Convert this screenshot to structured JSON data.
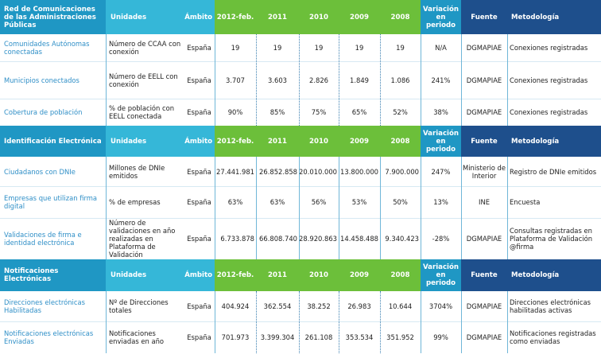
{
  "header_labels": {
    "unidades": "Unidades",
    "ambito": "Ámbito",
    "years": [
      "2012-feb.",
      "2011",
      "2010",
      "2009",
      "2008"
    ],
    "variacion": "Variación en periodo",
    "fuente": "Fuente",
    "metodologia": "Metodología"
  },
  "sections": [
    {
      "title": "Red de Comunicaciones de las Administraciones Públicas",
      "rows": [
        {
          "name": "Comunidades Autónomas conectadas",
          "unit": "Número de CCAA con conexión",
          "ambito": "España",
          "values": [
            "19",
            "19",
            "19",
            "19",
            "19"
          ],
          "variacion": "N/A",
          "fuente": "DGMAPIAE",
          "metodologia": "Conexiones registradas"
        },
        {
          "name": "Municipios conectados",
          "unit": "Número de EELL con conexión",
          "ambito": "España",
          "values": [
            "3.707",
            "3.603",
            "2.826",
            "1.849",
            "1.086"
          ],
          "variacion": "241%",
          "fuente": "DGMAPIAE",
          "metodologia": "Conexiones registradas"
        },
        {
          "name": "Cobertura de población",
          "unit": "% de población con EELL conectada",
          "ambito": "España",
          "values": [
            "90%",
            "85%",
            "75%",
            "65%",
            "52%"
          ],
          "variacion": "38%",
          "fuente": "DGMAPIAE",
          "metodologia": "Conexiones registradas"
        }
      ]
    },
    {
      "title": "Identificación Electrónica",
      "rows": [
        {
          "name": "Ciudadanos con DNIe",
          "unit": "Millones de DNIe emitidos",
          "ambito": "España",
          "values": [
            "27.441.981",
            "26.852.858",
            "20.010.000",
            "13.800.000",
            "7.900.000"
          ],
          "variacion": "247%",
          "fuente": "Ministerio de Interior",
          "metodologia": "Registro de DNIe emitidos"
        },
        {
          "name": "Empresas que utilizan firma digital",
          "unit": "% de empresas",
          "ambito": "España",
          "values": [
            "63%",
            "63%",
            "56%",
            "53%",
            "50%"
          ],
          "variacion": "13%",
          "fuente": "INE",
          "metodologia": "Encuesta"
        },
        {
          "name": "Validaciones de firma e identidad electrónica",
          "unit": "Número de validaciones en año realizadas en Plataforma de Validación",
          "ambito": "España",
          "values": [
            "6.733.878",
            "66.808.740",
            "28.920.863",
            "14.458.488",
            "9.340.423"
          ],
          "variacion": "-28%",
          "fuente": "DGMAPIAE",
          "metodologia": "Consultas registradas en Plataforma de Validación @firma"
        }
      ]
    },
    {
      "title": "Notificaciones Electrónicas",
      "rows": [
        {
          "name": "Direcciones electrónicas Habilitadas",
          "unit": "Nº de Direcciones totales",
          "ambito": "España",
          "values": [
            "404.924",
            "362.554",
            "38.252",
            "26.983",
            "10.644"
          ],
          "variacion": "3704%",
          "fuente": "DGMAPIAE",
          "metodologia": "Direcciones electrónicas habilitadas activas"
        },
        {
          "name": "Notificaciones electrónicas Enviadas",
          "unit": "Notificaciones enviadas en año",
          "ambito": "España",
          "values": [
            "701.973",
            "3.399.304",
            "261.108",
            "353.534",
            "351.952"
          ],
          "variacion": "99%",
          "fuente": "DGMAPIAE",
          "metodologia": "Notificaciones registradas como enviadas"
        }
      ]
    }
  ]
}
